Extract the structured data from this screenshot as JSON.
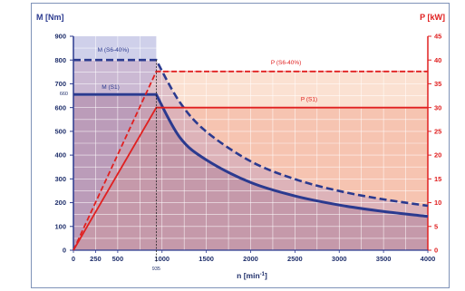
{
  "chart_data": {
    "type": "line",
    "title": "",
    "xlabel_main": "n [min",
    "xlabel_sup": "-1",
    "xlabel_close": "]",
    "ylabel_left": "M [Nm]",
    "ylabel_right": "P [kW]",
    "xlim": [
      0,
      4000
    ],
    "ylim_left": [
      0,
      900
    ],
    "ylim_right": [
      0,
      45
    ],
    "x_ticks": [
      0,
      250,
      500,
      1000,
      1500,
      2000,
      2500,
      3000,
      3500,
      4000
    ],
    "y_left_ticks": [
      0,
      100,
      200,
      300,
      400,
      500,
      600,
      700,
      800,
      900
    ],
    "y_right_ticks": [
      0,
      5,
      10,
      15,
      20,
      25,
      30,
      35,
      40,
      45
    ],
    "grid": true,
    "extra_x_label": "935",
    "extra_y_label": "660",
    "series": [
      {
        "name": "M (S6-40%)",
        "axis": "left",
        "style": "dashed",
        "color": "#2b3a8f",
        "x": [
          0,
          935,
          1200,
          1500,
          2000,
          2500,
          3000,
          3500,
          4000
        ],
        "y": [
          800,
          800,
          623,
          499,
          374,
          299,
          249,
          214,
          187
        ]
      },
      {
        "name": "M (S1)",
        "axis": "left",
        "style": "solid",
        "color": "#2b3a8f",
        "x": [
          0,
          935,
          1200,
          1500,
          2000,
          2500,
          3000,
          3500,
          4000
        ],
        "y": [
          655,
          655,
          475,
          380,
          285,
          228,
          190,
          163,
          142
        ]
      },
      {
        "name": "P (S6-40%)",
        "axis": "right",
        "style": "dashed",
        "color": "#e02020",
        "x": [
          0,
          935,
          4000
        ],
        "y": [
          0,
          37.6,
          37.6
        ]
      },
      {
        "name": "P (S1)",
        "axis": "right",
        "style": "solid",
        "color": "#e02020",
        "x": [
          0,
          935,
          4000
        ],
        "y": [
          0,
          30,
          30
        ]
      }
    ]
  }
}
